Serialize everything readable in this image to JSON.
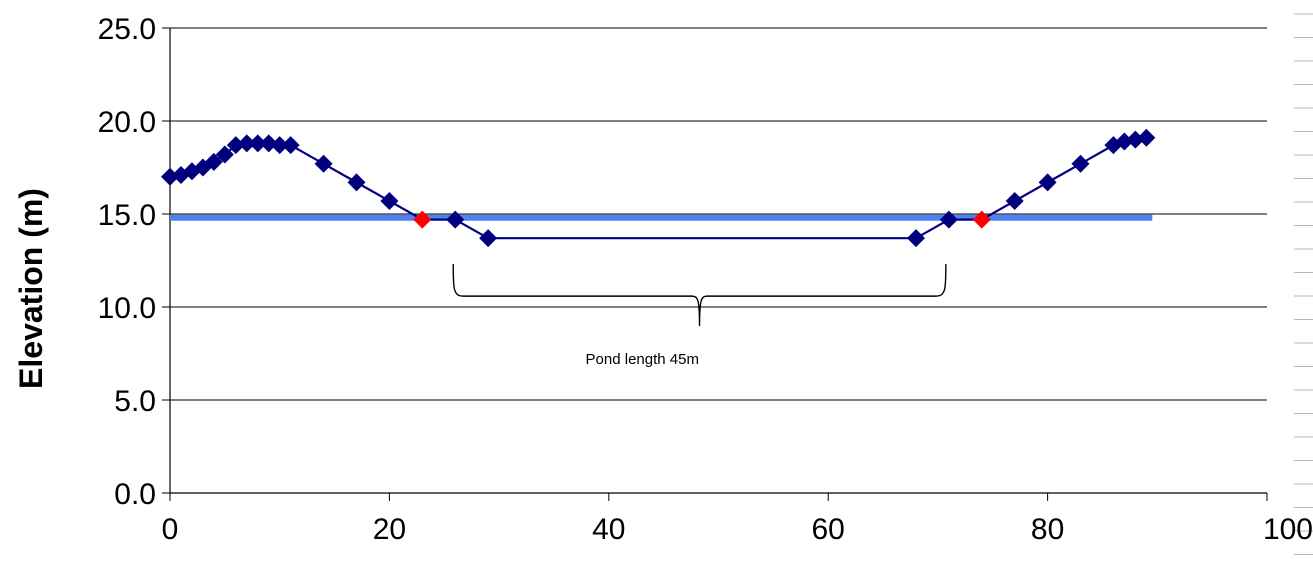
{
  "chart_data": {
    "type": "line",
    "title": "",
    "xlabel": "",
    "ylabel": "Elevation (m)",
    "xlim": [
      0,
      100
    ],
    "ylim": [
      0,
      25
    ],
    "x_ticks": [
      0,
      20,
      40,
      60,
      80,
      100
    ],
    "x_tick_labels": [
      "0",
      "20",
      "40",
      "60",
      "80",
      "100"
    ],
    "y_ticks": [
      0,
      5,
      10,
      15,
      20,
      25
    ],
    "y_tick_labels": [
      "0.0",
      "5.0",
      "10.0",
      "15.0",
      "20.0",
      "25.0"
    ],
    "grid": "horizontal",
    "legend": "none",
    "colors": {
      "profile": "#00007f",
      "water": "#4f81f0",
      "water_edge_marker": "#ff0000",
      "grid": "#000000",
      "bracket": "#000000"
    },
    "series": [
      {
        "color": "#00007f",
        "marker": "diamond",
        "points": [
          {
            "x": 0,
            "y": 17.0
          },
          {
            "x": 1,
            "y": 17.1
          },
          {
            "x": 2,
            "y": 17.3
          },
          {
            "x": 3,
            "y": 17.5
          },
          {
            "x": 4,
            "y": 17.8
          },
          {
            "x": 5,
            "y": 18.2
          },
          {
            "x": 6,
            "y": 18.7
          },
          {
            "x": 7,
            "y": 18.8
          },
          {
            "x": 8,
            "y": 18.8
          },
          {
            "x": 9,
            "y": 18.8
          },
          {
            "x": 10,
            "y": 18.7
          },
          {
            "x": 11,
            "y": 18.7
          },
          {
            "x": 14,
            "y": 17.7
          },
          {
            "x": 17,
            "y": 16.7
          },
          {
            "x": 20,
            "y": 15.7
          },
          {
            "x": 23,
            "y": 14.7
          },
          {
            "x": 26,
            "y": 14.7
          },
          {
            "x": 29,
            "y": 13.7
          },
          {
            "x": 68,
            "y": 13.7
          },
          {
            "x": 71,
            "y": 14.7
          },
          {
            "x": 74,
            "y": 14.7
          },
          {
            "x": 77,
            "y": 15.7
          },
          {
            "x": 80,
            "y": 16.7
          },
          {
            "x": 83,
            "y": 17.7
          },
          {
            "x": 86,
            "y": 18.7
          },
          {
            "x": 87,
            "y": 18.9
          },
          {
            "x": 88,
            "y": 19.0
          },
          {
            "x": 89,
            "y": 19.1
          }
        ],
        "highlight_points": [
          {
            "x": 23,
            "y": 14.7
          },
          {
            "x": 74,
            "y": 14.7
          }
        ]
      },
      {
        "color": "#4f81f0",
        "type": "line",
        "points": [
          {
            "x": 0,
            "y": 14.8
          },
          {
            "x": 89,
            "y": 14.8
          }
        ]
      }
    ],
    "annotations": [
      {
        "text": "Pond length 45m",
        "bracket_x": [
          26,
          71
        ],
        "bracket_y": 10.8
      }
    ]
  }
}
